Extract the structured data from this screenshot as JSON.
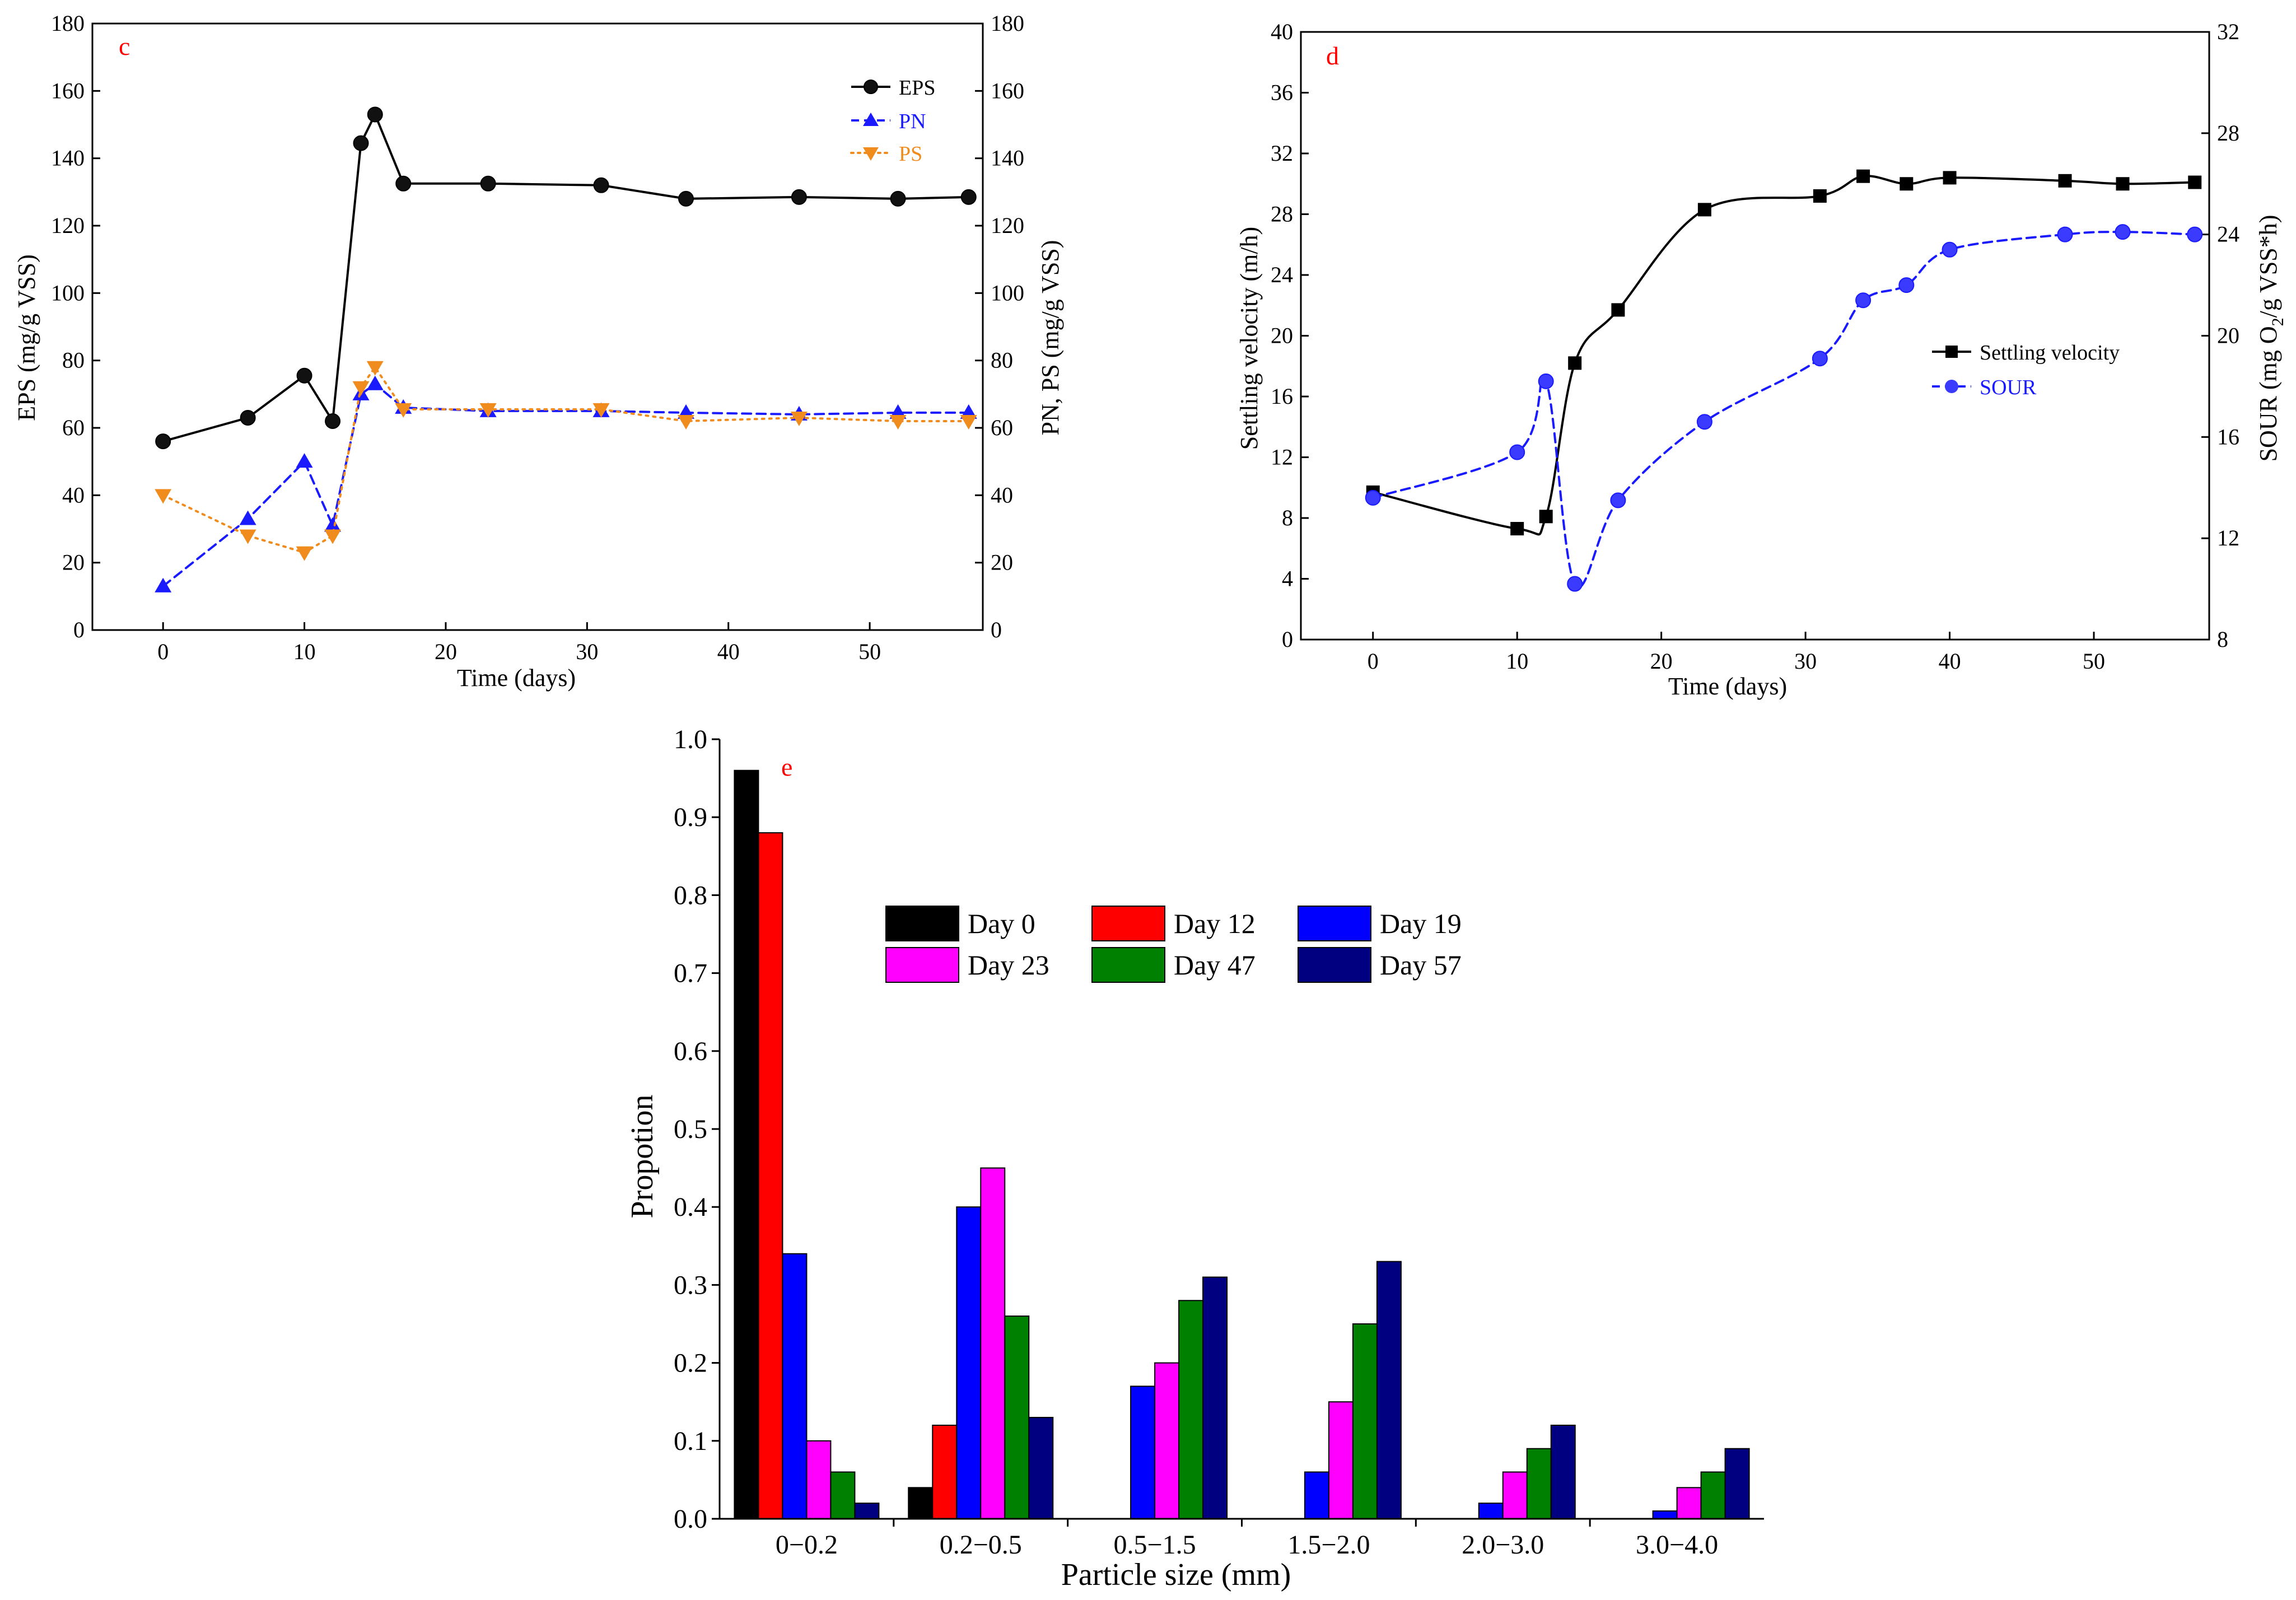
{
  "chart_data": [
    {
      "panel": "c",
      "type": "line",
      "x_label": "Time (days)",
      "y_label": "EPS (mg/g VSS)",
      "y2_label": "PN, PS (mg/g VSS)",
      "xlim": [
        -5,
        58
      ],
      "ylim": [
        0,
        180
      ],
      "y2lim": [
        0,
        180
      ],
      "x_ticks": [
        "0",
        "10",
        "20",
        "30",
        "40",
        "50"
      ],
      "y_ticks": [
        "0",
        "20",
        "40",
        "60",
        "80",
        "100",
        "120",
        "140",
        "160",
        "180"
      ],
      "y2_ticks": [
        "0",
        "20",
        "40",
        "60",
        "80",
        "100",
        "120",
        "140",
        "160",
        "180"
      ],
      "legend_position": "top-right",
      "series": [
        {
          "name": "EPS",
          "color": "#000000",
          "style": "solid",
          "marker": "circle",
          "axis": "left",
          "x": [
            0,
            6,
            10,
            12,
            14,
            15,
            17,
            23,
            31,
            37,
            45,
            52,
            57
          ],
          "y": [
            56,
            63,
            75.5,
            62,
            144.5,
            153,
            132.5,
            132.5,
            132,
            128,
            128.5,
            128,
            128.5
          ]
        },
        {
          "name": "PN",
          "color": "#1a1aff",
          "style": "dashed",
          "marker": "triangle-up",
          "axis": "right",
          "x": [
            0,
            6,
            10,
            12,
            14,
            15,
            17,
            23,
            31,
            37,
            45,
            52,
            57
          ],
          "y": [
            13,
            33,
            50,
            31,
            70,
            73,
            66,
            65,
            65,
            64.5,
            64,
            64.5,
            64.5
          ]
        },
        {
          "name": "PS",
          "color": "#f08c1e",
          "style": "dotted",
          "marker": "triangle-down",
          "axis": "right",
          "x": [
            0,
            6,
            10,
            12,
            14,
            15,
            17,
            23,
            31,
            37,
            45,
            52,
            57
          ],
          "y": [
            40,
            28,
            23,
            28,
            72,
            78,
            65.5,
            65.5,
            65.5,
            62,
            63,
            62,
            62
          ]
        }
      ]
    },
    {
      "panel": "d",
      "type": "line",
      "x_label": "Time (days)",
      "y_label": "Settling velocity (m/h)",
      "y2_label_parts": [
        "SOUR (mg O",
        "2",
        "/g VSS*h)"
      ],
      "xlim": [
        -5,
        58
      ],
      "ylim": [
        0,
        40
      ],
      "y2lim": [
        8,
        32
      ],
      "x_ticks": [
        "0",
        "10",
        "20",
        "30",
        "40",
        "50"
      ],
      "y_ticks": [
        "0",
        "4",
        "8",
        "12",
        "16",
        "20",
        "24",
        "28",
        "32",
        "36",
        "40"
      ],
      "y2_ticks": [
        "8",
        "12",
        "16",
        "20",
        "24",
        "28",
        "32"
      ],
      "legend_position": "right",
      "series": [
        {
          "name": "Settling velocity",
          "color": "#000000",
          "style": "solid",
          "marker": "square",
          "axis": "left",
          "x": [
            0,
            10,
            12,
            14,
            17,
            23,
            31,
            34,
            37,
            40,
            48,
            52,
            57
          ],
          "y": [
            9.7,
            7.3,
            8.1,
            18.2,
            21.7,
            28.3,
            29.2,
            30.5,
            30.0,
            30.4,
            30.2,
            30.0,
            30.1
          ]
        },
        {
          "name": "SOUR",
          "color": "#1a1aff",
          "style": "dashed",
          "marker": "circle",
          "axis": "right",
          "x": [
            0,
            10,
            12,
            14,
            17,
            23,
            31,
            34,
            37,
            40,
            48,
            52,
            57
          ],
          "y": [
            13.6,
            15.4,
            18.2,
            10.2,
            13.5,
            16.6,
            19.1,
            21.4,
            22.0,
            23.4,
            24.0,
            24.1,
            24.0
          ]
        }
      ]
    },
    {
      "panel": "e",
      "type": "bar",
      "x_label": "Particle size (mm)",
      "y_label": "Propotion",
      "ylim": [
        0,
        1.0
      ],
      "y_ticks": [
        "0.0",
        "0.1",
        "0.2",
        "0.3",
        "0.4",
        "0.5",
        "0.6",
        "0.7",
        "0.8",
        "0.9",
        "1.0"
      ],
      "categories": [
        "0−0.2",
        "0.2−0.5",
        "0.5−1.5",
        "1.5−2.0",
        "2.0−3.0",
        "3.0−4.0"
      ],
      "legend_position": "upper-middle",
      "series": [
        {
          "name": "Day 0",
          "color": "#000000",
          "values": [
            0.96,
            0.04,
            0,
            0,
            0,
            0
          ]
        },
        {
          "name": "Day 12",
          "color": "#ff0000",
          "values": [
            0.88,
            0.12,
            0,
            0,
            0,
            0
          ]
        },
        {
          "name": "Day 19",
          "color": "#0000ff",
          "values": [
            0.34,
            0.4,
            0.17,
            0.06,
            0.02,
            0.01
          ]
        },
        {
          "name": "Day 23",
          "color": "#ff00ff",
          "values": [
            0.1,
            0.45,
            0.2,
            0.15,
            0.06,
            0.04
          ]
        },
        {
          "name": "Day 47",
          "color": "#008000",
          "values": [
            0.06,
            0.26,
            0.28,
            0.25,
            0.09,
            0.06
          ]
        },
        {
          "name": "Day 57",
          "color": "#000080",
          "values": [
            0.02,
            0.13,
            0.31,
            0.33,
            0.12,
            0.09
          ]
        }
      ]
    }
  ],
  "colors": {
    "panel_letter": "#ff0000",
    "axis": "#000000"
  }
}
